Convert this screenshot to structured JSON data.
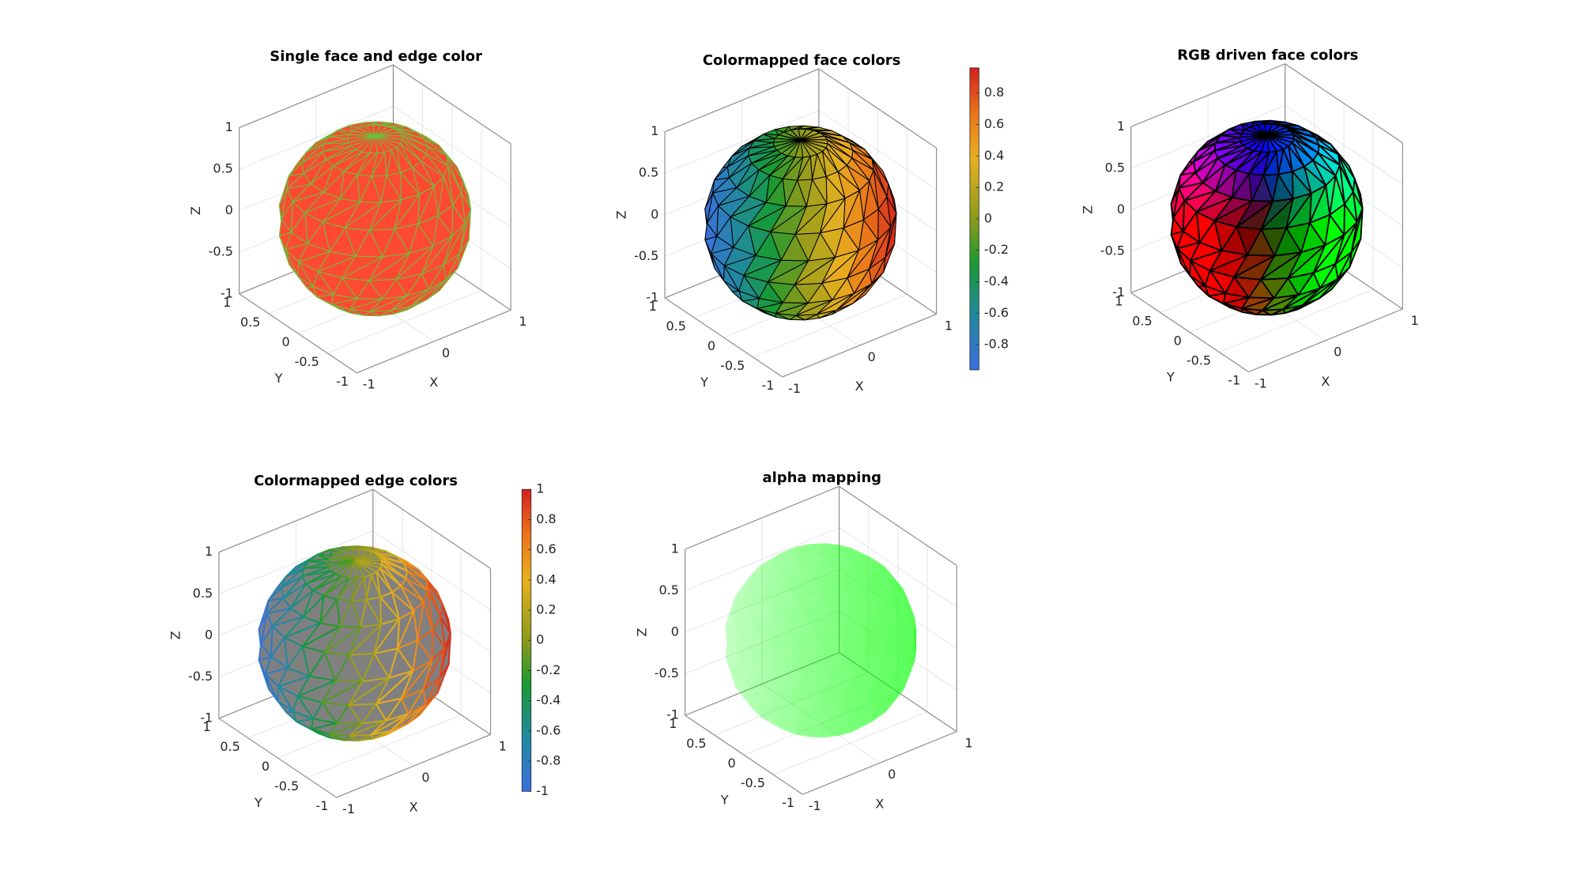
{
  "plots": [
    {
      "title": "Single face and edge color",
      "xlabel": "X",
      "ylabel": "Y",
      "zlabel": "Z",
      "xticks": [
        -1,
        0,
        1
      ],
      "yticks": [
        -1,
        -0.5,
        0,
        0.5,
        1
      ],
      "zticks": [
        -1,
        -0.5,
        0,
        0.5,
        1
      ]
    },
    {
      "title": "Colormapped face colors",
      "xlabel": "X",
      "ylabel": "Y",
      "zlabel": "Z",
      "xticks": [
        -1,
        0,
        1
      ],
      "yticks": [
        -1,
        -0.5,
        0,
        0.5,
        1
      ],
      "zticks": [
        -1,
        -0.5,
        0,
        0.5,
        1
      ],
      "colorbar": {
        "clim": [
          -0.96,
          0.96
        ],
        "ticks": [
          -0.8,
          -0.6,
          -0.4,
          -0.2,
          0,
          0.2,
          0.4,
          0.6,
          0.8
        ]
      }
    },
    {
      "title": "RGB driven face colors",
      "xlabel": "X",
      "ylabel": "Y",
      "zlabel": "Z",
      "xticks": [
        -1,
        0,
        1
      ],
      "yticks": [
        -1,
        -0.5,
        0,
        0.5,
        1
      ],
      "zticks": [
        -1,
        -0.5,
        0,
        0.5,
        1
      ]
    },
    {
      "title": "Colormapped edge colors",
      "xlabel": "X",
      "ylabel": "Y",
      "zlabel": "Z",
      "xticks": [
        -1,
        0,
        1
      ],
      "yticks": [
        -1,
        -0.5,
        0,
        0.5,
        1
      ],
      "zticks": [
        -1,
        -0.5,
        0,
        0.5,
        1
      ],
      "colorbar": {
        "clim": [
          -1,
          1
        ],
        "ticks": [
          -1,
          -0.8,
          -0.6,
          -0.4,
          -0.2,
          0,
          0.2,
          0.4,
          0.6,
          0.8,
          1
        ]
      }
    },
    {
      "title": "alpha mapping",
      "xlabel": "X",
      "ylabel": "Y",
      "zlabel": "Z",
      "xticks": [
        -1,
        0,
        1
      ],
      "yticks": [
        -1,
        -0.5,
        0,
        0.5,
        1
      ],
      "zticks": [
        -1,
        -0.5,
        0,
        0.5,
        1
      ]
    }
  ]
}
